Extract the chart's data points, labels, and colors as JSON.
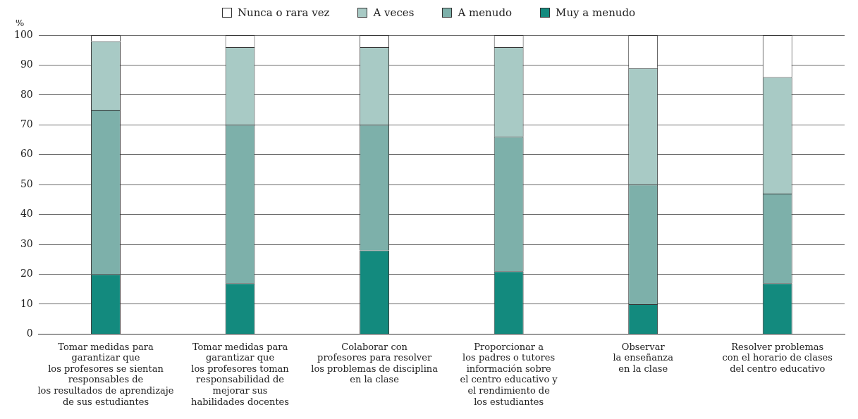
{
  "chart_data": {
    "type": "bar",
    "stacked": true,
    "ylabel": "%",
    "legend": "top",
    "grid": "y",
    "categories": [
      "Tomar medidas para\ngarantizar que\nlos profesores se sientan\nresponsables de\nlos resultados de aprendizaje\nde sus estudiantes",
      "Tomar medidas para\ngarantizar que\nlos profesores toman\nresponsabilidad de\nmejorar sus\nhabilidades docentes",
      "Colaborar con\nprofesores para resolver\nlos problemas de disciplina\nen la clase",
      "Proporcionar a\nlos padres o tutores\ninformación sobre\nel centro educativo y\nel rendimiento de\nlos estudiantes",
      "Observar\nla enseñanza\nen la clase",
      "Resolver problemas\ncon el horario de clases\ndel centro educativo"
    ],
    "series": [
      {
        "name": "Muy a menudo",
        "color": "#138a7e",
        "values": [
          20,
          17,
          28,
          21,
          10,
          17
        ]
      },
      {
        "name": "A menudo",
        "color": "#7db0aa",
        "values": [
          55,
          53,
          42,
          45,
          40,
          30
        ]
      },
      {
        "name": "A veces",
        "color": "#a8cac5",
        "values": [
          23,
          26,
          26,
          30,
          39,
          39
        ]
      },
      {
        "name": "Nunca o rara vez",
        "color": "#ffffff",
        "values": [
          2,
          4,
          4,
          4,
          11,
          14
        ]
      }
    ],
    "ylim": [
      0,
      100
    ],
    "yticks": [
      0,
      10,
      20,
      30,
      40,
      50,
      60,
      70,
      80,
      90,
      100
    ]
  }
}
